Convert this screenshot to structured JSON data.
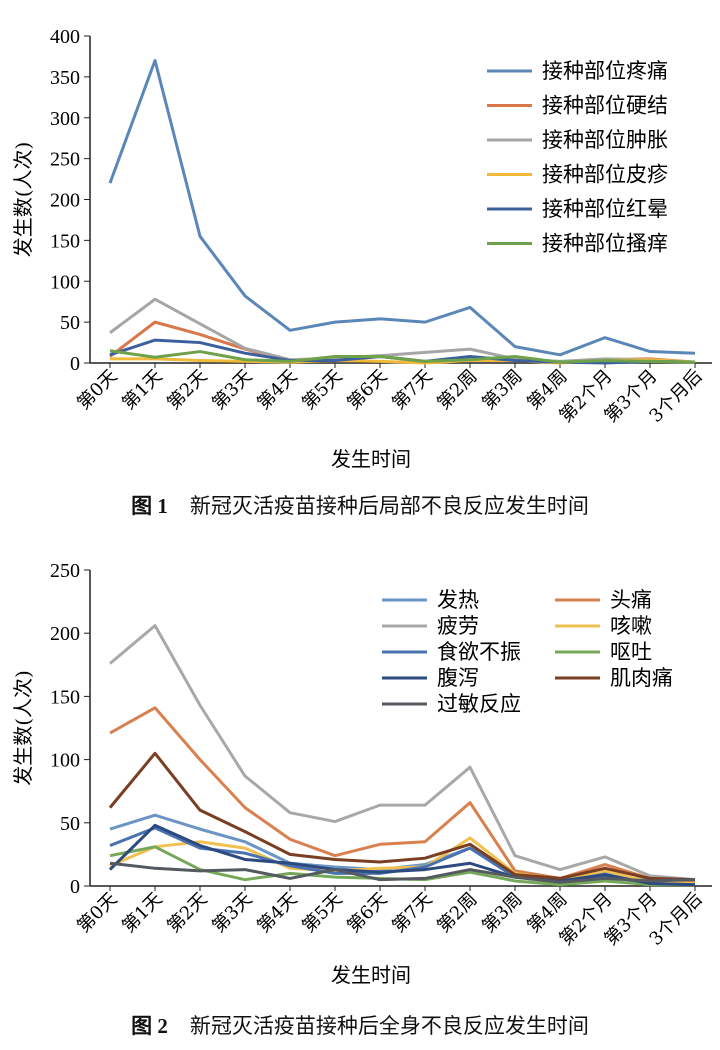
{
  "chart_data": [
    {
      "type": "line",
      "ylabel": "发生数(人次)",
      "xlabel": "发生时间",
      "ylim": [
        0,
        400
      ],
      "yticks": [
        0,
        50,
        100,
        150,
        200,
        250,
        300,
        350,
        400
      ],
      "categories": [
        "第0天",
        "第1天",
        "第2天",
        "第3天",
        "第4天",
        "第5天",
        "第6天",
        "第7天",
        "第2周",
        "第3周",
        "第4周",
        "第2个月",
        "第3个月",
        "3个月后"
      ],
      "legend": "top-right",
      "series": [
        {
          "name": "接种部位疼痛",
          "color": "#5b87b8",
          "values": [
            220,
            370,
            155,
            82,
            40,
            50,
            54,
            50,
            68,
            20,
            10,
            31,
            14,
            12
          ]
        },
        {
          "name": "接种部位硬结",
          "color": "#d9764a",
          "values": [
            8,
            50,
            35,
            17,
            3,
            3,
            8,
            2,
            5,
            5,
            1,
            4,
            5,
            1
          ]
        },
        {
          "name": "接种部位肿胀",
          "color": "#a6a6a6",
          "values": [
            37,
            78,
            48,
            18,
            4,
            6,
            9,
            13,
            17,
            5,
            2,
            5,
            4,
            1
          ]
        },
        {
          "name": "接种部位皮疹",
          "color": "#f0b93a",
          "values": [
            5,
            5,
            3,
            2,
            1,
            3,
            2,
            0,
            3,
            3,
            0,
            3,
            4,
            1
          ]
        },
        {
          "name": "接种部位红晕",
          "color": "#3c5f9e",
          "values": [
            10,
            28,
            25,
            12,
            3,
            3,
            8,
            2,
            8,
            3,
            1,
            0,
            2,
            1
          ]
        },
        {
          "name": "接种部位搔痒",
          "color": "#6ea24a",
          "values": [
            15,
            7,
            14,
            4,
            2,
            8,
            8,
            2,
            4,
            8,
            1,
            3,
            2,
            1
          ]
        }
      ],
      "caption_num": "图 1",
      "caption": "新冠灭活疫苗接种后局部不良反应发生时间"
    },
    {
      "type": "line",
      "ylabel": "发生数(人次)",
      "xlabel": "发生时间",
      "ylim": [
        0,
        250
      ],
      "yticks": [
        0,
        50,
        100,
        150,
        200,
        250
      ],
      "categories": [
        "第0天",
        "第1天",
        "第2天",
        "第3天",
        "第4天",
        "第5天",
        "第6天",
        "第7天",
        "第2周",
        "第3周",
        "第4周",
        "第2个月",
        "第3个月",
        "3个月后"
      ],
      "legend": "top-right",
      "series": [
        {
          "name": "发热",
          "color": "#6a95c4",
          "values": [
            45,
            56,
            45,
            35,
            18,
            15,
            13,
            17,
            30,
            8,
            4,
            10,
            4,
            2
          ]
        },
        {
          "name": "头痛",
          "color": "#d9804f",
          "values": [
            121,
            141,
            100,
            62,
            37,
            24,
            33,
            35,
            66,
            12,
            6,
            17,
            6,
            3
          ]
        },
        {
          "name": "疲劳",
          "color": "#a8a8a8",
          "values": [
            176,
            206,
            143,
            87,
            58,
            51,
            64,
            64,
            94,
            24,
            13,
            23,
            8,
            5
          ]
        },
        {
          "name": "咳嗽",
          "color": "#f0c050",
          "values": [
            16,
            31,
            35,
            30,
            14,
            12,
            14,
            15,
            38,
            10,
            5,
            12,
            3,
            2
          ]
        },
        {
          "name": "食欲不振",
          "color": "#4a72b0",
          "values": [
            32,
            46,
            30,
            26,
            16,
            10,
            10,
            15,
            30,
            7,
            3,
            8,
            2,
            1
          ]
        },
        {
          "name": "呕吐",
          "color": "#76a85a",
          "values": [
            24,
            31,
            13,
            5,
            10,
            7,
            6,
            5,
            11,
            4,
            1,
            4,
            1,
            1
          ]
        },
        {
          "name": "腹泻",
          "color": "#2d4a80",
          "values": [
            13,
            48,
            32,
            21,
            18,
            13,
            11,
            13,
            18,
            7,
            4,
            9,
            2,
            1
          ]
        },
        {
          "name": "肌肉痛",
          "color": "#7a3e22",
          "values": [
            62,
            105,
            60,
            43,
            25,
            21,
            19,
            22,
            33,
            9,
            6,
            14,
            6,
            5
          ]
        },
        {
          "name": "过敏反应",
          "color": "#555a60",
          "values": [
            18,
            14,
            12,
            13,
            6,
            13,
            5,
            6,
            13,
            7,
            3,
            6,
            4,
            5
          ]
        }
      ],
      "caption_num": "图 2",
      "caption": "新冠灭活疫苗接种后全身不良反应发生时间"
    }
  ]
}
